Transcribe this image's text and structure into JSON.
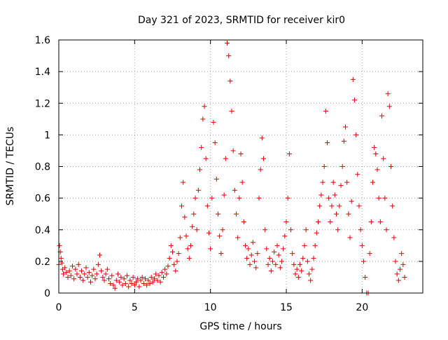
{
  "chart_data": {
    "type": "scatter",
    "marker": "plus",
    "title": "Day 321 of 2023, SRMTID for receiver kir0",
    "xlabel": "GPS time / hours",
    "ylabel": "SRMTID / TECUs",
    "xlim": [
      0,
      24
    ],
    "ylim": [
      0,
      1.6
    ],
    "xticks": [
      0,
      5,
      10,
      15,
      20
    ],
    "xtick_labels": [
      "0",
      "5",
      "10",
      "15",
      "20"
    ],
    "yticks": [
      0,
      0.2,
      0.4,
      0.6,
      0.8,
      1.0,
      1.2,
      1.4,
      1.6
    ],
    "ytick_labels": [
      "0",
      "0.2",
      "0.4",
      "0.6",
      "0.8",
      "1",
      "1.2",
      "1.4",
      "1.6"
    ],
    "grid": true,
    "series": [
      {
        "name": "kir0",
        "color": "#e00000",
        "points": [
          [
            0.0,
            0.18
          ],
          [
            0.05,
            0.3
          ],
          [
            0.1,
            0.26
          ],
          [
            0.15,
            0.22
          ],
          [
            0.2,
            0.19
          ],
          [
            0.25,
            0.15
          ],
          [
            0.3,
            0.12
          ],
          [
            0.4,
            0.16
          ],
          [
            0.5,
            0.13
          ],
          [
            0.6,
            0.1
          ],
          [
            0.7,
            0.14
          ],
          [
            0.8,
            0.11
          ],
          [
            0.9,
            0.17
          ],
          [
            1.0,
            0.09
          ],
          [
            1.1,
            0.15
          ],
          [
            1.2,
            0.12
          ],
          [
            1.3,
            0.18
          ],
          [
            1.4,
            0.1
          ],
          [
            1.5,
            0.14
          ],
          [
            1.6,
            0.08
          ],
          [
            1.7,
            0.12
          ],
          [
            1.8,
            0.16
          ],
          [
            1.9,
            0.1
          ],
          [
            2.0,
            0.13
          ],
          [
            2.1,
            0.07
          ],
          [
            2.2,
            0.11
          ],
          [
            2.3,
            0.15
          ],
          [
            2.4,
            0.09
          ],
          [
            2.5,
            0.12
          ],
          [
            2.6,
            0.18
          ],
          [
            2.7,
            0.24
          ],
          [
            2.8,
            0.14
          ],
          [
            2.9,
            0.1
          ],
          [
            3.0,
            0.08
          ],
          [
            3.1,
            0.12
          ],
          [
            3.2,
            0.15
          ],
          [
            3.3,
            0.09
          ],
          [
            3.4,
            0.06
          ],
          [
            3.5,
            0.11
          ],
          [
            3.6,
            0.05
          ],
          [
            3.7,
            0.03
          ],
          [
            3.8,
            0.08
          ],
          [
            3.9,
            0.12
          ],
          [
            4.0,
            0.07
          ],
          [
            4.1,
            0.1
          ],
          [
            4.2,
            0.05
          ],
          [
            4.3,
            0.09
          ],
          [
            4.4,
            0.06
          ],
          [
            4.5,
            0.11
          ],
          [
            4.6,
            0.04
          ],
          [
            4.7,
            0.08
          ],
          [
            4.8,
            0.06
          ],
          [
            4.9,
            0.1
          ],
          [
            5.0,
            0.05
          ],
          [
            5.1,
            0.07
          ],
          [
            5.2,
            0.09
          ],
          [
            5.3,
            0.04
          ],
          [
            5.4,
            0.08
          ],
          [
            5.5,
            0.1
          ],
          [
            5.6,
            0.06
          ],
          [
            5.7,
            0.09
          ],
          [
            5.8,
            0.05
          ],
          [
            5.9,
            0.08
          ],
          [
            6.0,
            0.06
          ],
          [
            6.1,
            0.1
          ],
          [
            6.2,
            0.07
          ],
          [
            6.3,
            0.09
          ],
          [
            6.4,
            0.12
          ],
          [
            6.5,
            0.08
          ],
          [
            6.6,
            0.11
          ],
          [
            6.7,
            0.07
          ],
          [
            6.8,
            0.13
          ],
          [
            6.9,
            0.1
          ],
          [
            7.0,
            0.15
          ],
          [
            7.1,
            0.12
          ],
          [
            7.2,
            0.17
          ],
          [
            7.3,
            0.22
          ],
          [
            7.4,
            0.3
          ],
          [
            7.5,
            0.26
          ],
          [
            7.6,
            0.18
          ],
          [
            7.7,
            0.14
          ],
          [
            7.8,
            0.2
          ],
          [
            7.9,
            0.25
          ],
          [
            8.0,
            0.35
          ],
          [
            8.1,
            0.55
          ],
          [
            8.2,
            0.7
          ],
          [
            8.3,
            0.48
          ],
          [
            8.4,
            0.36
          ],
          [
            8.5,
            0.28
          ],
          [
            8.6,
            0.22
          ],
          [
            8.7,
            0.3
          ],
          [
            8.8,
            0.42
          ],
          [
            8.9,
            0.5
          ],
          [
            9.0,
            0.6
          ],
          [
            9.1,
            0.4
          ],
          [
            9.2,
            0.65
          ],
          [
            9.3,
            0.78
          ],
          [
            9.4,
            0.92
          ],
          [
            9.5,
            1.1
          ],
          [
            9.6,
            1.18
          ],
          [
            9.7,
            0.85
          ],
          [
            9.8,
            0.55
          ],
          [
            9.9,
            0.38
          ],
          [
            10.0,
            0.28
          ],
          [
            10.1,
            0.6
          ],
          [
            10.2,
            1.08
          ],
          [
            10.3,
            0.95
          ],
          [
            10.4,
            0.72
          ],
          [
            10.5,
            0.5
          ],
          [
            10.6,
            0.36
          ],
          [
            10.7,
            0.25
          ],
          [
            10.8,
            0.4
          ],
          [
            10.9,
            0.62
          ],
          [
            11.0,
            0.85
          ],
          [
            11.1,
            1.58
          ],
          [
            11.2,
            1.5
          ],
          [
            11.3,
            1.34
          ],
          [
            11.4,
            1.15
          ],
          [
            11.5,
            0.9
          ],
          [
            11.6,
            0.65
          ],
          [
            11.7,
            0.5
          ],
          [
            11.8,
            0.35
          ],
          [
            11.9,
            0.6
          ],
          [
            12.0,
            0.88
          ],
          [
            12.1,
            0.7
          ],
          [
            12.2,
            0.45
          ],
          [
            12.3,
            0.3
          ],
          [
            12.4,
            0.22
          ],
          [
            12.5,
            0.28
          ],
          [
            12.6,
            0.18
          ],
          [
            12.7,
            0.24
          ],
          [
            12.8,
            0.32
          ],
          [
            12.9,
            0.2
          ],
          [
            13.0,
            0.16
          ],
          [
            13.1,
            0.25
          ],
          [
            13.2,
            0.6
          ],
          [
            13.3,
            0.78
          ],
          [
            13.4,
            0.98
          ],
          [
            13.5,
            0.85
          ],
          [
            13.6,
            0.4
          ],
          [
            13.7,
            0.28
          ],
          [
            13.8,
            0.18
          ],
          [
            13.9,
            0.22
          ],
          [
            14.0,
            0.14
          ],
          [
            14.1,
            0.2
          ],
          [
            14.2,
            0.26
          ],
          [
            14.3,
            0.18
          ],
          [
            14.4,
            0.3
          ],
          [
            14.5,
            0.24
          ],
          [
            14.6,
            0.16
          ],
          [
            14.7,
            0.2
          ],
          [
            14.8,
            0.28
          ],
          [
            14.9,
            0.36
          ],
          [
            15.0,
            0.45
          ],
          [
            15.1,
            0.6
          ],
          [
            15.2,
            0.88
          ],
          [
            15.3,
            0.4
          ],
          [
            15.4,
            0.25
          ],
          [
            15.5,
            0.18
          ],
          [
            15.6,
            0.12
          ],
          [
            15.7,
            0.15
          ],
          [
            15.8,
            0.1
          ],
          [
            15.9,
            0.18
          ],
          [
            16.0,
            0.14
          ],
          [
            16.1,
            0.22
          ],
          [
            16.2,
            0.3
          ],
          [
            16.3,
            0.4
          ],
          [
            16.4,
            0.2
          ],
          [
            16.5,
            0.12
          ],
          [
            16.6,
            0.08
          ],
          [
            16.7,
            0.15
          ],
          [
            16.8,
            0.22
          ],
          [
            16.9,
            0.3
          ],
          [
            17.0,
            0.38
          ],
          [
            17.1,
            0.45
          ],
          [
            17.2,
            0.55
          ],
          [
            17.3,
            0.62
          ],
          [
            17.4,
            0.7
          ],
          [
            17.5,
            0.8
          ],
          [
            17.6,
            1.15
          ],
          [
            17.7,
            0.95
          ],
          [
            17.8,
            0.6
          ],
          [
            17.9,
            0.45
          ],
          [
            18.0,
            0.55
          ],
          [
            18.1,
            0.7
          ],
          [
            18.2,
            0.62
          ],
          [
            18.3,
            0.5
          ],
          [
            18.4,
            0.4
          ],
          [
            18.5,
            0.55
          ],
          [
            18.6,
            0.68
          ],
          [
            18.7,
            0.8
          ],
          [
            18.8,
            0.96
          ],
          [
            18.9,
            1.05
          ],
          [
            19.0,
            0.7
          ],
          [
            19.1,
            0.5
          ],
          [
            19.2,
            0.35
          ],
          [
            19.3,
            0.58
          ],
          [
            19.4,
            1.35
          ],
          [
            19.5,
            1.22
          ],
          [
            19.6,
            1.0
          ],
          [
            19.7,
            0.75
          ],
          [
            19.8,
            0.55
          ],
          [
            19.9,
            0.4
          ],
          [
            20.0,
            0.3
          ],
          [
            20.1,
            0.2
          ],
          [
            20.2,
            0.1
          ],
          [
            20.3,
            0.0
          ],
          [
            20.4,
            0.0
          ],
          [
            20.5,
            0.25
          ],
          [
            20.6,
            0.45
          ],
          [
            20.7,
            0.7
          ],
          [
            20.8,
            0.92
          ],
          [
            20.9,
            0.88
          ],
          [
            21.0,
            0.78
          ],
          [
            21.1,
            0.6
          ],
          [
            21.2,
            0.45
          ],
          [
            21.3,
            1.12
          ],
          [
            21.4,
            0.85
          ],
          [
            21.5,
            0.6
          ],
          [
            21.6,
            0.4
          ],
          [
            21.7,
            1.26
          ],
          [
            21.8,
            1.18
          ],
          [
            21.9,
            0.8
          ],
          [
            22.0,
            0.55
          ],
          [
            22.1,
            0.35
          ],
          [
            22.2,
            0.2
          ],
          [
            22.3,
            0.12
          ],
          [
            22.4,
            0.08
          ],
          [
            22.5,
            0.15
          ],
          [
            22.6,
            0.25
          ],
          [
            22.7,
            0.18
          ],
          [
            22.8,
            0.1
          ]
        ]
      }
    ]
  }
}
